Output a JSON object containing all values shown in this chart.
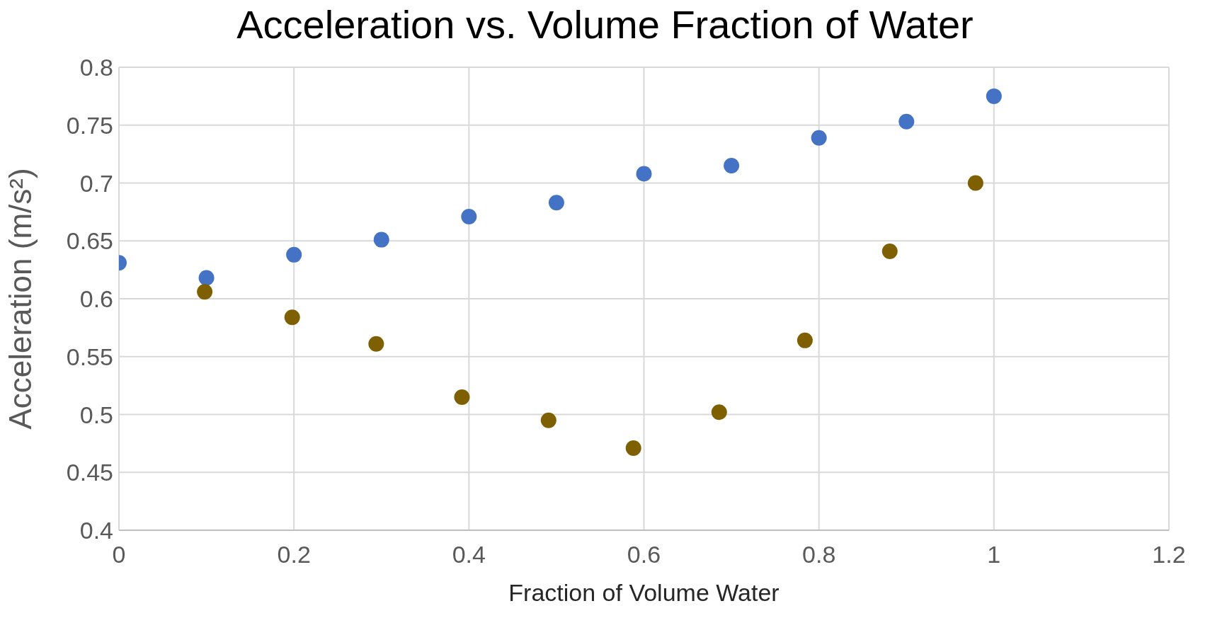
{
  "chart_data": {
    "type": "scatter",
    "title": "Acceleration vs. Volume Fraction of Water",
    "xlabel": "Fraction of Volume Water",
    "ylabel": "Acceleration (m/s²)",
    "xlim": [
      0,
      1.2
    ],
    "xticks": [
      0,
      0.2,
      0.4,
      0.6,
      0.8,
      1,
      1.2
    ],
    "ylim": [
      0.4,
      0.8
    ],
    "yticks": [
      0.4,
      0.45,
      0.5,
      0.55,
      0.6,
      0.65,
      0.7,
      0.75,
      0.8
    ],
    "grid": true,
    "marker": "circle",
    "series": [
      {
        "color": "#4472c4",
        "x": [
          0,
          0.1,
          0.2,
          0.3,
          0.4,
          0.5,
          0.6,
          0.7,
          0.8,
          0.9,
          1.0
        ],
        "values": [
          0.631,
          0.618,
          0.638,
          0.651,
          0.671,
          0.683,
          0.708,
          0.715,
          0.739,
          0.753,
          0.775
        ]
      },
      {
        "color": "#7f6000",
        "x": [
          0.098,
          0.198,
          0.294,
          0.392,
          0.491,
          0.588,
          0.686,
          0.784,
          0.881,
          0.979
        ],
        "values": [
          0.606,
          0.584,
          0.561,
          0.515,
          0.495,
          0.471,
          0.502,
          0.564,
          0.641,
          0.7
        ]
      }
    ]
  }
}
